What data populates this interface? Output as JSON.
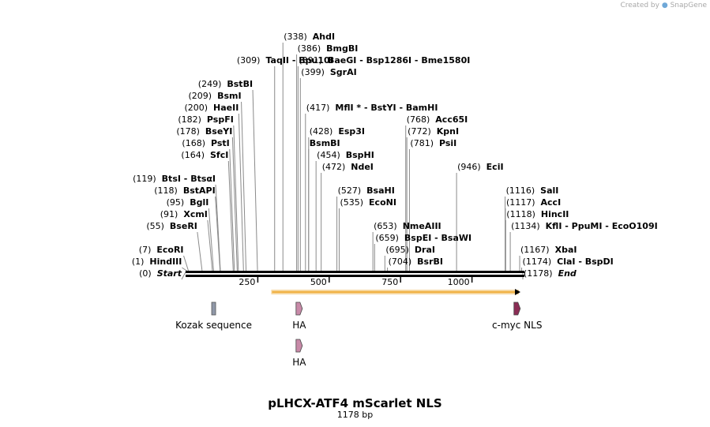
{
  "header": {
    "created_by": "Created by",
    "brand": "SnapGene"
  },
  "plasmid": {
    "name": "pLHCX-ATF4 mScarlet NLS",
    "length_label": "1178 bp",
    "length_bp": 1178
  },
  "ruler": {
    "ticks": [
      {
        "bp": 250,
        "label": "250"
      },
      {
        "bp": 500,
        "label": "500"
      },
      {
        "bp": 750,
        "label": "750"
      },
      {
        "bp": 1000,
        "label": "1000"
      }
    ]
  },
  "sites": [
    {
      "id": "start",
      "names": [
        "Start"
      ],
      "pos_label": "(0)",
      "bp": 0,
      "row": 17,
      "side": "left",
      "italic": true
    },
    {
      "id": "hindiii",
      "names": [
        "HindIII"
      ],
      "pos_label": "(1)",
      "bp": 1,
      "row": 16,
      "side": "left"
    },
    {
      "id": "ecori",
      "names": [
        "EcoRI"
      ],
      "pos_label": "(7)",
      "bp": 7,
      "row": 15,
      "side": "left"
    },
    {
      "id": "beseri",
      "names": [
        "BseRI"
      ],
      "pos_label": "(55)",
      "bp": 55,
      "row": 13,
      "side": "left"
    },
    {
      "id": "xcmi",
      "names": [
        "XcmI"
      ],
      "pos_label": "(91)",
      "bp": 91,
      "row": 12,
      "side": "left"
    },
    {
      "id": "bgli",
      "names": [
        "BglI"
      ],
      "pos_label": "(95)",
      "bp": 95,
      "row": 11,
      "side": "left"
    },
    {
      "id": "bstapi",
      "names": [
        "BstAPI"
      ],
      "pos_label": "(118)",
      "bp": 118,
      "row": 10,
      "side": "left"
    },
    {
      "id": "btsi",
      "names": [
        "BtsI",
        "BtsαI"
      ],
      "pos_label": "(119)",
      "bp": 119,
      "row": 9,
      "side": "left"
    },
    {
      "id": "sfci",
      "names": [
        "SfcI"
      ],
      "pos_label": "(164)",
      "bp": 164,
      "row": 7,
      "side": "left"
    },
    {
      "id": "psti",
      "names": [
        "PstI"
      ],
      "pos_label": "(168)",
      "bp": 168,
      "row": 6,
      "side": "left"
    },
    {
      "id": "bseyi",
      "names": [
        "BseYI"
      ],
      "pos_label": "(178)",
      "bp": 178,
      "row": 5,
      "side": "left"
    },
    {
      "id": "pspfi",
      "names": [
        "PspFI"
      ],
      "pos_label": "(182)",
      "bp": 182,
      "row": 4,
      "side": "left"
    },
    {
      "id": "haeii",
      "names": [
        "HaeII"
      ],
      "pos_label": "(200)",
      "bp": 200,
      "row": 3,
      "side": "left"
    },
    {
      "id": "bsmi",
      "names": [
        "BsmI"
      ],
      "pos_label": "(209)",
      "bp": 209,
      "row": 2,
      "side": "left"
    },
    {
      "id": "bstbi",
      "names": [
        "BstBI"
      ],
      "pos_label": "(249)",
      "bp": 249,
      "row": 1,
      "side": "left"
    },
    {
      "id": "taqii",
      "names": [
        "TaqII",
        "Bpu10I"
      ],
      "pos_label": "(309)",
      "bp": 309,
      "row": -1,
      "side": "left"
    },
    {
      "id": "ahdi",
      "names": [
        "AhdI"
      ],
      "pos_label": "(338)",
      "bp": 338,
      "row": -3,
      "side": "right"
    },
    {
      "id": "bmgbi",
      "names": [
        "BmgBI"
      ],
      "pos_label": "(386)",
      "bp": 386,
      "row": -2,
      "side": "right"
    },
    {
      "id": "baegi",
      "names": [
        "BaeGI",
        "Bsp1286I",
        "Bme1580I"
      ],
      "pos_label": "(391)",
      "bp": 391,
      "row": -1,
      "side": "right"
    },
    {
      "id": "sgrai",
      "names": [
        "SgrAI"
      ],
      "pos_label": "(399)",
      "bp": 399,
      "row": 0,
      "side": "right"
    },
    {
      "id": "mfli",
      "names": [
        "MflI *",
        "BstYI",
        "BamHI"
      ],
      "pos_label": "(417)",
      "bp": 417,
      "row": 3,
      "side": "right"
    },
    {
      "id": "esp3i",
      "names": [
        "Esp3I"
      ],
      "pos_label": "(428)",
      "bp": 428,
      "row": 5,
      "side": "right"
    },
    {
      "id": "bsmbi",
      "names": [
        "BsmBI"
      ],
      "pos_label": "",
      "bp": 428,
      "row": 6,
      "side": "right"
    },
    {
      "id": "bsphi",
      "names": [
        "BspHI"
      ],
      "pos_label": "(454)",
      "bp": 454,
      "row": 7,
      "side": "right"
    },
    {
      "id": "ndei",
      "names": [
        "NdeI"
      ],
      "pos_label": "(472)",
      "bp": 472,
      "row": 8,
      "side": "right"
    },
    {
      "id": "bsahi",
      "names": [
        "BsaHI"
      ],
      "pos_label": "(527)",
      "bp": 527,
      "row": 10,
      "side": "right"
    },
    {
      "id": "econi",
      "names": [
        "EcoNI"
      ],
      "pos_label": "(535)",
      "bp": 535,
      "row": 11,
      "side": "right"
    },
    {
      "id": "nmeaiii",
      "names": [
        "NmeAIII"
      ],
      "pos_label": "(653)",
      "bp": 653,
      "row": 13,
      "side": "right"
    },
    {
      "id": "bspei",
      "names": [
        "BspEI",
        "BsaWI"
      ],
      "pos_label": "(659)",
      "bp": 659,
      "row": 14,
      "side": "right"
    },
    {
      "id": "drai",
      "names": [
        "DraI"
      ],
      "pos_label": "(695)",
      "bp": 695,
      "row": 15,
      "side": "right"
    },
    {
      "id": "bsrbi",
      "names": [
        "BsrBI"
      ],
      "pos_label": "(704)",
      "bp": 704,
      "row": 16,
      "side": "right"
    },
    {
      "id": "acc65i",
      "names": [
        "Acc65I"
      ],
      "pos_label": "(768)",
      "bp": 768,
      "row": 4,
      "side": "right"
    },
    {
      "id": "kpni",
      "names": [
        "KpnI"
      ],
      "pos_label": "(772)",
      "bp": 772,
      "row": 5,
      "side": "right"
    },
    {
      "id": "psii",
      "names": [
        "PsiI"
      ],
      "pos_label": "(781)",
      "bp": 781,
      "row": 6,
      "side": "right"
    },
    {
      "id": "ecii",
      "names": [
        "EciI"
      ],
      "pos_label": "(946)",
      "bp": 946,
      "row": 8,
      "side": "right"
    },
    {
      "id": "sali",
      "names": [
        "SalI"
      ],
      "pos_label": "(1116)",
      "bp": 1116,
      "row": 10,
      "side": "right"
    },
    {
      "id": "acci",
      "names": [
        "AccI"
      ],
      "pos_label": "(1117)",
      "bp": 1117,
      "row": 11,
      "side": "right"
    },
    {
      "id": "hincii",
      "names": [
        "HincII"
      ],
      "pos_label": "(1118)",
      "bp": 1118,
      "row": 12,
      "side": "right"
    },
    {
      "id": "kfli",
      "names": [
        "KflI",
        "PpuMI",
        "EcoO109I"
      ],
      "pos_label": "(1134)",
      "bp": 1134,
      "row": 13,
      "side": "right"
    },
    {
      "id": "xbai",
      "names": [
        "XbaI"
      ],
      "pos_label": "(1167)",
      "bp": 1167,
      "row": 15,
      "side": "right"
    },
    {
      "id": "clai",
      "names": [
        "ClaI",
        "BspDI"
      ],
      "pos_label": "(1174)",
      "bp": 1174,
      "row": 16,
      "side": "right"
    },
    {
      "id": "end",
      "names": [
        "End"
      ],
      "pos_label": "(1178)",
      "bp": 1178,
      "row": 17,
      "side": "right",
      "italic": true
    }
  ],
  "features": [
    {
      "id": "orf",
      "label": "",
      "type": "orf-arrow",
      "start": 300,
      "end": 1178,
      "color": "#f0b040"
    },
    {
      "id": "kozak",
      "label": "Kozak sequence",
      "type": "box",
      "start": 93,
      "end": 98,
      "color": "#8f98a8",
      "lane": 1
    },
    {
      "id": "ha1",
      "label": "HA",
      "type": "arrow",
      "start": 382,
      "end": 408,
      "color": "#c88aa8",
      "lane": 1
    },
    {
      "id": "myc",
      "label": "c-myc NLS",
      "type": "arrow",
      "start": 1144,
      "end": 1172,
      "color": "#8b2d55",
      "lane": 1
    },
    {
      "id": "ha2",
      "label": "HA",
      "type": "arrow",
      "start": 382,
      "end": 408,
      "color": "#c88aa8",
      "lane": 2
    }
  ]
}
